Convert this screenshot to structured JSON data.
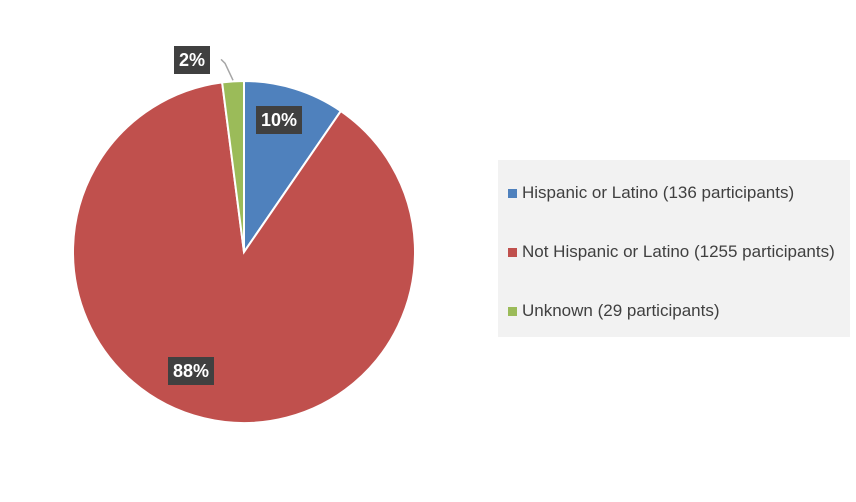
{
  "chart_data": {
    "type": "pie",
    "categories": [
      "Hispanic or Latino",
      "Not Hispanic or Latino",
      "Unknown"
    ],
    "values": [
      136,
      1255,
      29
    ],
    "percent_labels": [
      "10%",
      "88%",
      "2%"
    ],
    "legend_labels": [
      "Hispanic or Latino (136 participants)",
      "Not Hispanic or Latino (1255 participants)",
      "Unknown (29 participants)"
    ],
    "colors": [
      "#4f81bd",
      "#c0504d",
      "#9bbb59"
    ],
    "legend_position": "right",
    "start_angle_deg": 0,
    "direction": "clockwise"
  }
}
